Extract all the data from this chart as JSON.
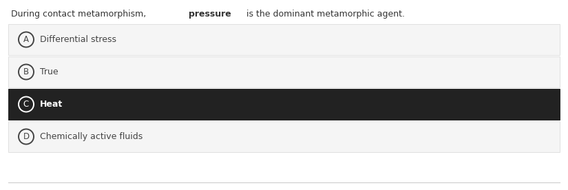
{
  "question_parts": [
    {
      "text": "During contact metamorphism, ",
      "bold": false
    },
    {
      "text": "pressure",
      "bold": true
    },
    {
      "text": " is the dominant metamorphic agent.",
      "bold": false
    }
  ],
  "options": [
    {
      "label": "A",
      "text": "Differential stress",
      "selected": false
    },
    {
      "label": "B",
      "text": "True",
      "selected": false
    },
    {
      "label": "C",
      "text": "Heat",
      "selected": true
    },
    {
      "label": "D",
      "text": "Chemically active fluids",
      "selected": false
    }
  ],
  "bg_color": "#ffffff",
  "option_bg_normal": "#f5f5f5",
  "option_bg_selected": "#222222",
  "option_text_normal": "#444444",
  "option_text_selected": "#ffffff",
  "circle_color_normal": "#444444",
  "circle_color_selected": "#ffffff",
  "question_color": "#333333",
  "border_color": "#e0e0e0",
  "bottom_line_color": "#cccccc",
  "font_size_question": 9.0,
  "font_size_option": 9.0,
  "fig_width": 8.25,
  "fig_height": 2.76,
  "dpi": 100
}
